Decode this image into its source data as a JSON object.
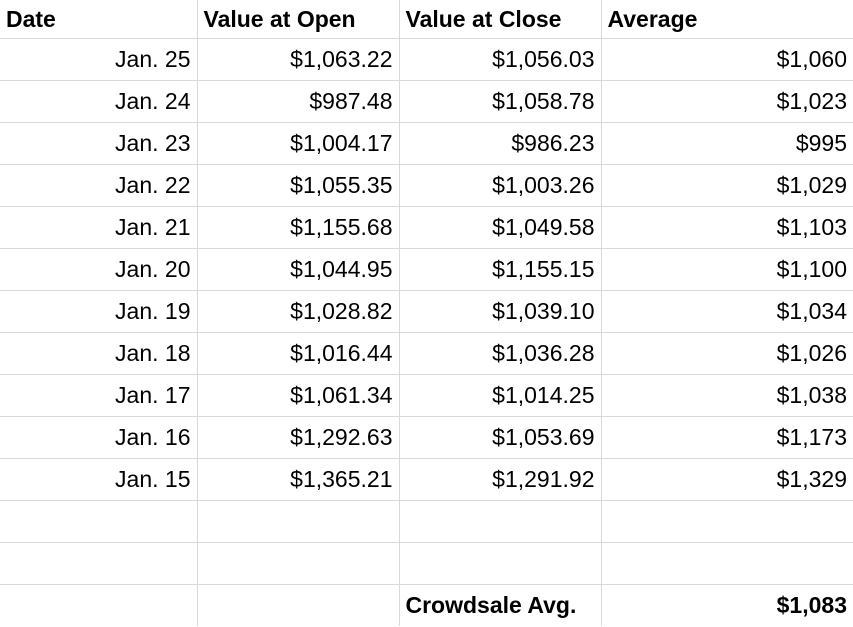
{
  "headers": [
    "Date",
    "Value at Open",
    "Value at Close",
    "Average"
  ],
  "rows": [
    {
      "date": "Jan. 25",
      "open": "$1,063.22",
      "close": "$1,056.03",
      "avg": "$1,060"
    },
    {
      "date": "Jan. 24",
      "open": "$987.48",
      "close": "$1,058.78",
      "avg": "$1,023"
    },
    {
      "date": "Jan. 23",
      "open": "$1,004.17",
      "close": "$986.23",
      "avg": "$995"
    },
    {
      "date": "Jan. 22",
      "open": "$1,055.35",
      "close": "$1,003.26",
      "avg": "$1,029"
    },
    {
      "date": "Jan. 21",
      "open": "$1,155.68",
      "close": "$1,049.58",
      "avg": "$1,103"
    },
    {
      "date": "Jan. 20",
      "open": "$1,044.95",
      "close": "$1,155.15",
      "avg": "$1,100"
    },
    {
      "date": "Jan. 19",
      "open": "$1,028.82",
      "close": "$1,039.10",
      "avg": "$1,034"
    },
    {
      "date": "Jan. 18",
      "open": "$1,016.44",
      "close": "$1,036.28",
      "avg": "$1,026"
    },
    {
      "date": "Jan. 17",
      "open": "$1,061.34",
      "close": "$1,014.25",
      "avg": "$1,038"
    },
    {
      "date": "Jan. 16",
      "open": "$1,292.63",
      "close": "$1,053.69",
      "avg": "$1,173"
    },
    {
      "date": "Jan. 15",
      "open": "$1,365.21",
      "close": "$1,291.92",
      "avg": "$1,329"
    }
  ],
  "summary": {
    "label": "Crowdsale Avg.",
    "value": "$1,083"
  }
}
